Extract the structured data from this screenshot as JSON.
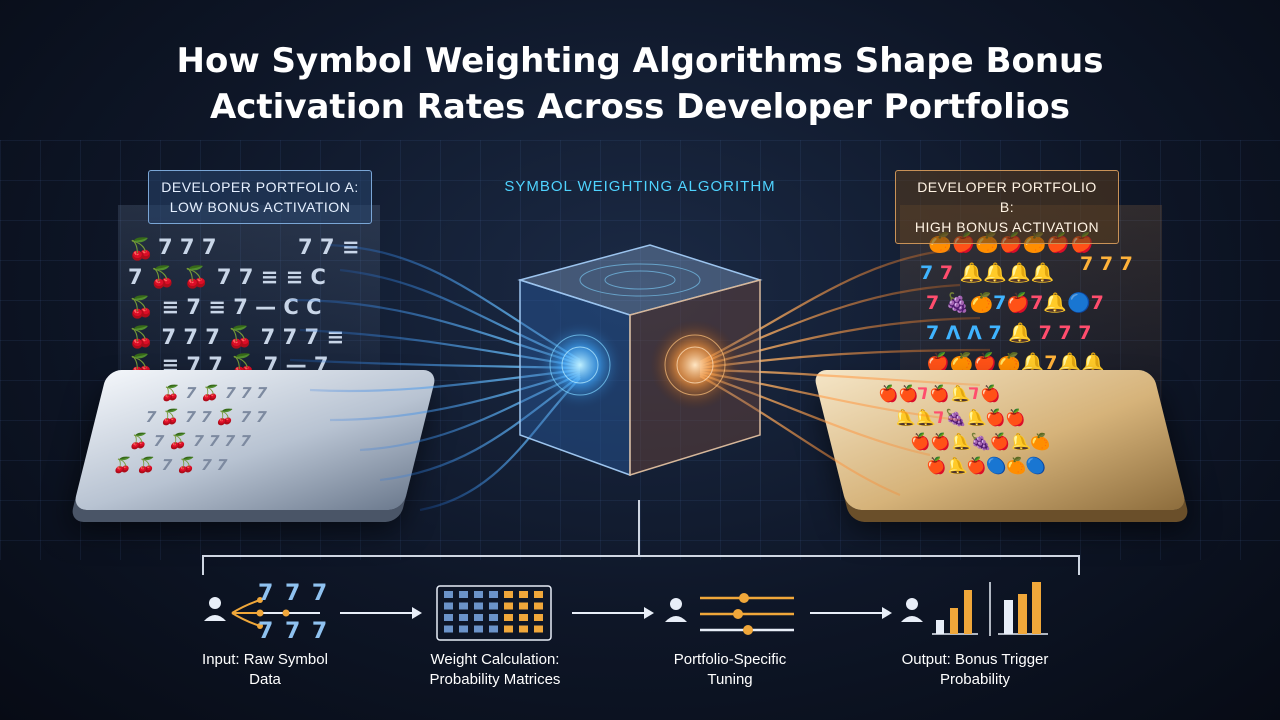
{
  "title": {
    "line1": "How Symbol Weighting Algorithms Shape Bonus",
    "line2": "Activation Rates Across Developer Portfolios"
  },
  "portfolio_a": {
    "line1": "DEVELOPER PORTFOLIO A:",
    "line2": "LOW BONUS ACTIVATION"
  },
  "portfolio_b": {
    "line1": "DEVELOPER PORTFOLIO B:",
    "line2": "HIGH BONUS ACTIVATION"
  },
  "algorithm_label": "SYMBOL WEIGHTING ALGORITHM",
  "input_symbols": {
    "row1": "7 7 7",
    "row2": "7 7 7"
  },
  "flow": {
    "step1": {
      "line1": "Input: Raw Symbol",
      "line2": "Data"
    },
    "step2": {
      "line1": "Weight Calculation:",
      "line2": "Probability Matrices"
    },
    "step3": {
      "line1": "Portfolio-Specific",
      "line2": "Tuning"
    },
    "step4": {
      "line1": "Output: Bonus Trigger",
      "line2": "Probability"
    }
  },
  "icons": [
    "user-icon",
    "matrix-grid-icon",
    "slider-icon",
    "bar-chart-icon",
    "cherry-icon",
    "seven-icon",
    "bar-icon",
    "bell-icon",
    "fruit-icon",
    "cube-icon"
  ],
  "colors": {
    "accent_blue": "#3fa9ff",
    "accent_orange": "#ff9a3c",
    "algo_label": "#4fd3ff",
    "matrix_highlight": "#f0a73a",
    "matrix_base": "#6b93c9"
  }
}
